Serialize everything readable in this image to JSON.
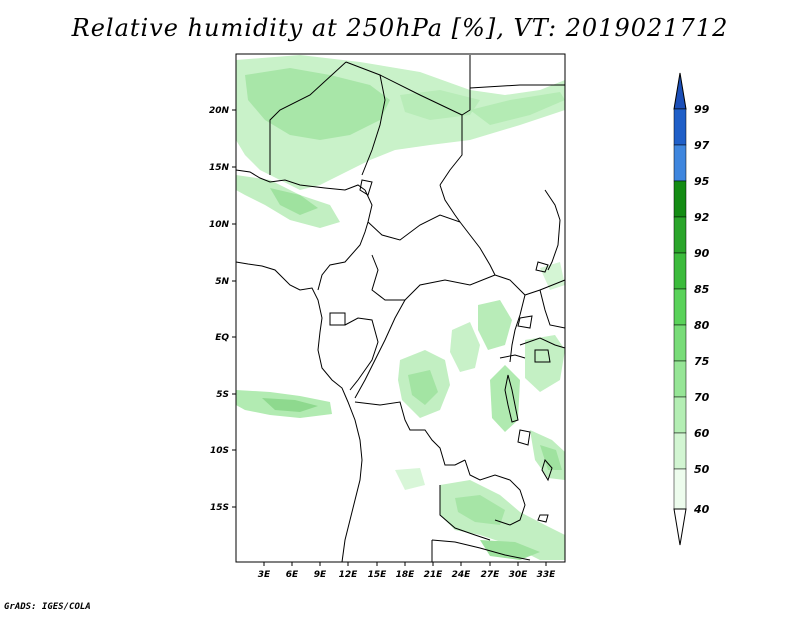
{
  "title": "Relative humidity at 250hPa [%], VT: 2019021712",
  "credit": "GrADS: IGES/COLA",
  "map": {
    "lat_labels": [
      "20N",
      "15N",
      "10N",
      "5N",
      "EQ",
      "5S",
      "10S",
      "15S"
    ],
    "lon_labels": [
      "3E",
      "6E",
      "9E",
      "12E",
      "15E",
      "18E",
      "21E",
      "24E",
      "27E",
      "30E",
      "33E"
    ]
  },
  "colorbar": {
    "levels": [
      "99",
      "97",
      "95",
      "92",
      "90",
      "85",
      "80",
      "75",
      "70",
      "60",
      "50",
      "40"
    ],
    "colors": [
      "#1f5fc8",
      "#3f86de",
      "#5a9ee8",
      "#148c14",
      "#2aa52a",
      "#3cbb3c",
      "#5ad25a",
      "#78dc78",
      "#96e596",
      "#b4eeb4",
      "#d2f5d2",
      "#edfced"
    ],
    "top_color": "#1b4fb8",
    "bottom_color": "#ffffff"
  }
}
